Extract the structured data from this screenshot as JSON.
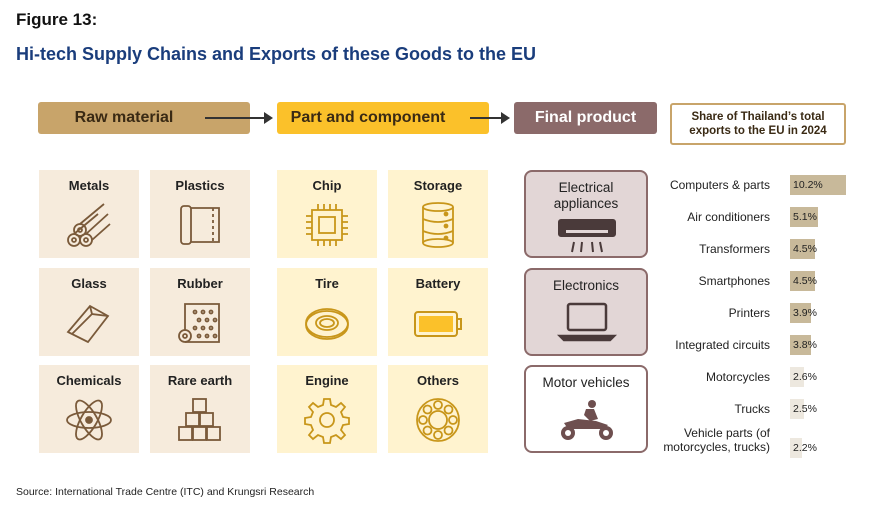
{
  "figure_label": "Figure 13:",
  "title": "Hi-tech Supply Chains and Exports of these Goods to the EU",
  "headers": {
    "raw": "Raw material",
    "part": "Part and component",
    "final": "Final product",
    "share": "Share of Thailand’s total exports to the EU in 2024"
  },
  "raw_materials": [
    {
      "label": "Metals",
      "icon": "metal-rods-icon"
    },
    {
      "label": "Plastics",
      "icon": "plastic-roll-icon"
    },
    {
      "label": "Glass",
      "icon": "glass-block-icon"
    },
    {
      "label": "Rubber",
      "icon": "rubber-roll-icon"
    },
    {
      "label": "Chemicals",
      "icon": "atom-icon"
    },
    {
      "label": "Rare earth",
      "icon": "stacked-boxes-icon"
    }
  ],
  "components": [
    {
      "label": "Chip",
      "icon": "chip-icon"
    },
    {
      "label": "Storage",
      "icon": "database-icon"
    },
    {
      "label": "Tire",
      "icon": "tire-icon"
    },
    {
      "label": "Battery",
      "icon": "battery-icon"
    },
    {
      "label": "Engine",
      "icon": "gear-icon"
    },
    {
      "label": "Others",
      "icon": "bearing-icon"
    }
  ],
  "final_products": [
    {
      "label": "Electrical appliances",
      "icon": "air-conditioner-icon"
    },
    {
      "label": "Electronics",
      "icon": "laptop-icon"
    },
    {
      "label": "Motor vehicles",
      "icon": "motorcycle-icon"
    }
  ],
  "chart_data": {
    "type": "bar",
    "orientation": "horizontal",
    "categories": [
      "Computers & parts",
      "Air conditioners",
      "Transformers",
      "Smartphones",
      "Printers",
      "Integrated circuits",
      "Motorcycles",
      "Trucks",
      "Vehicle parts (of motorcycles, trucks)"
    ],
    "values": [
      10.2,
      5.1,
      4.5,
      4.5,
      3.9,
      3.8,
      2.6,
      2.5,
      2.2
    ],
    "value_labels": [
      "10.2%",
      "5.1%",
      "4.5%",
      "4.5%",
      "3.9%",
      "3.8%",
      "2.6%",
      "2.5%",
      "2.2%"
    ],
    "emphasis": [
      true,
      true,
      true,
      true,
      true,
      true,
      false,
      false,
      false
    ],
    "colors": {
      "strong": "#c8b99a",
      "light": "#ede8df"
    },
    "xlim": [
      0,
      10.2
    ]
  },
  "source": "Source: International Trade Centre (ITC) and Krungsri Research"
}
